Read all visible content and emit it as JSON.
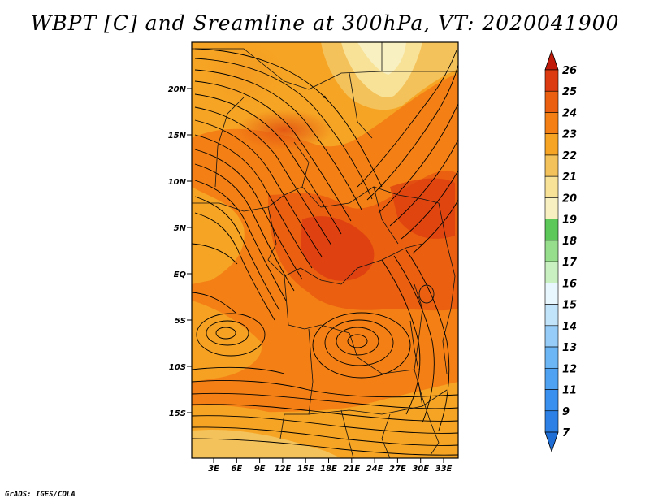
{
  "title": "WBPT [C] and Sreamline at 300hPa, VT: 2020041900",
  "credit": "GrADS: IGES/COLA",
  "map": {
    "lon_range": [
      0,
      35
    ],
    "lat_range": [
      -20,
      24
    ],
    "lat_ticks": [
      "20N",
      "15N",
      "10N",
      "5N",
      "EQ",
      "5S",
      "10S",
      "15S"
    ],
    "lon_ticks": [
      "3E",
      "6E",
      "9E",
      "12E",
      "15E",
      "18E",
      "21E",
      "24E",
      "27E",
      "30E",
      "33E"
    ],
    "fields": [
      "wet-bulb potential temperature shading",
      "300hPa streamlines",
      "country borders"
    ]
  },
  "colorbar": {
    "labels": [
      "7",
      "9",
      "11",
      "12",
      "13",
      "14",
      "15",
      "16",
      "17",
      "18",
      "19",
      "20",
      "21",
      "22",
      "23",
      "24",
      "25",
      "26"
    ],
    "colors": [
      "#1e6ed6",
      "#2c80e6",
      "#3a90ee",
      "#4fa2f2",
      "#6cb6f6",
      "#96cdf8",
      "#c2e4fa",
      "#e8f6fd",
      "#c8f0c0",
      "#96dd8c",
      "#5cc85a",
      "#f8f0c0",
      "#f8e298",
      "#f4c25a",
      "#f6a423",
      "#f48015",
      "#ea6010",
      "#dc3a10",
      "#c01a0a"
    ]
  }
}
